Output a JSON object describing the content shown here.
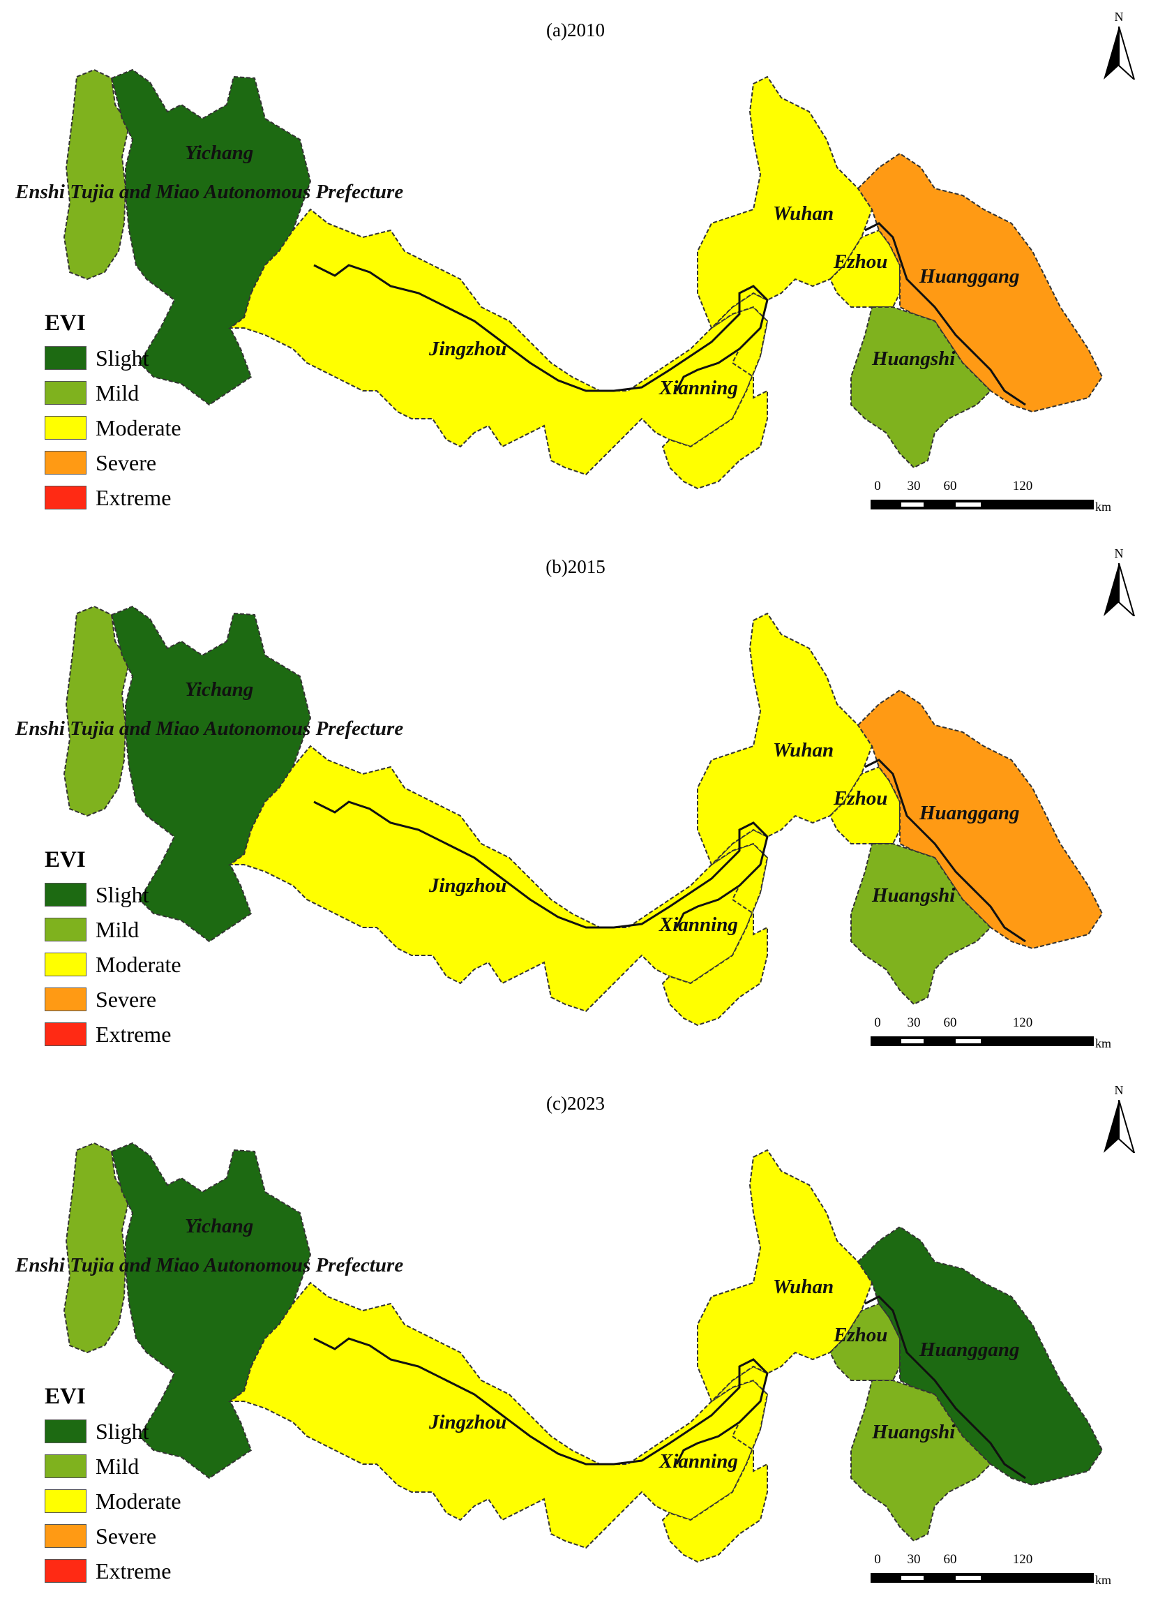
{
  "colors": {
    "Slight": "#1d6a12",
    "Mild": "#7fb21e",
    "Moderate": "#ffff00",
    "Severe": "#ff9a14",
    "Extreme": "#ff2a14",
    "boundary": "#111111"
  },
  "legend": {
    "title": "EVI",
    "items": [
      {
        "label": "Slight",
        "color": "#1d6a12"
      },
      {
        "label": "Mild",
        "color": "#7fb21e"
      },
      {
        "label": "Moderate",
        "color": "#ffff00"
      },
      {
        "label": "Severe",
        "color": "#ff9a14"
      },
      {
        "label": "Extreme",
        "color": "#ff2a14"
      }
    ]
  },
  "north_arrow": {
    "label": "N"
  },
  "scale_bar": {
    "ticks": [
      "0",
      "30",
      "60",
      "120"
    ],
    "unit": "km"
  },
  "cities": {
    "yichang": "Yichang",
    "enshi": "Enshi Tujia and Miao Autonomous Prefecture",
    "wuhan": "Wuhan",
    "ezhou": "Ezhou",
    "huanggang": "Huanggang",
    "jingzhou": "Jingzhou",
    "xianning": "Xianning",
    "huangshi": "Huangshi"
  },
  "panels": [
    {
      "title": "(a)2010",
      "dominant": {
        "enshi": "Mild",
        "yichang": "Slight",
        "jingzhou": "Moderate",
        "east": "Severe"
      }
    },
    {
      "title": "(b)2015",
      "dominant": {
        "enshi": "Mild",
        "yichang": "Slight",
        "jingzhou": "Moderate",
        "east": "Severe"
      }
    },
    {
      "title": "(c)2023",
      "dominant": {
        "enshi": "Mild",
        "yichang": "Slight",
        "jingzhou": "Moderate",
        "east": "Slight"
      }
    }
  ]
}
